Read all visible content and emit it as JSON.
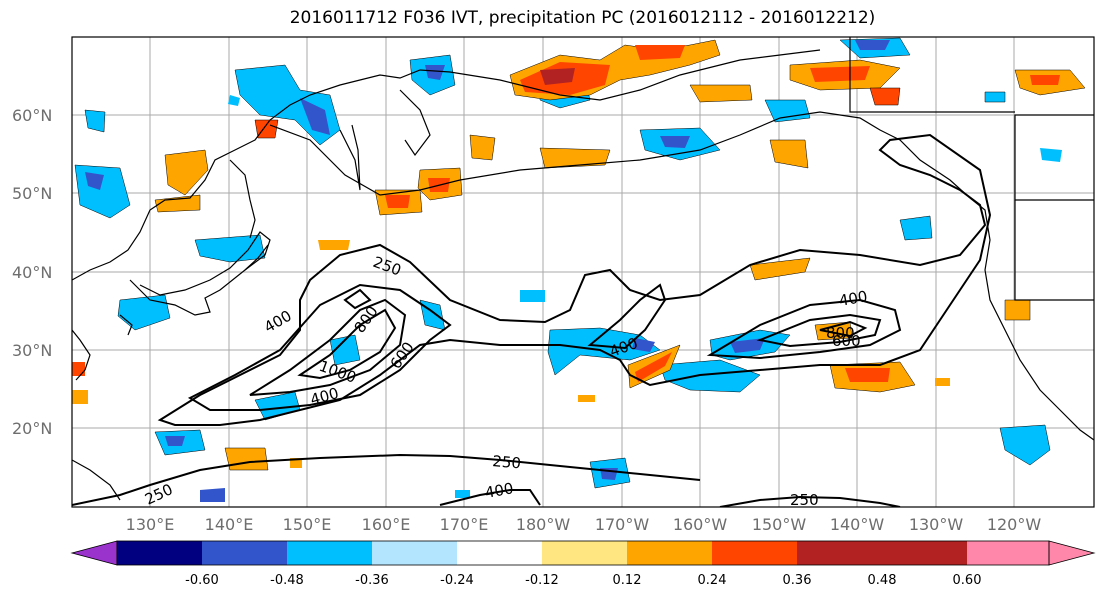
{
  "title": "2016011712 F036 IVT, precipitation PC (2016012112 - 2016012212)",
  "lat_labels": [
    "60°N",
    "50°N",
    "40°N",
    "30°N",
    "20°N"
  ],
  "lon_labels": [
    "130°E",
    "140°E",
    "150°E",
    "160°E",
    "170°E",
    "180°W",
    "170°W",
    "160°W",
    "150°W",
    "140°W",
    "130°W",
    "120°W"
  ],
  "colorbar": {
    "colors": [
      "#9933cc",
      "#000080",
      "#3355cc",
      "#00bfff",
      "#b3e5ff",
      "#ffffff",
      "#ffe680",
      "#ffa500",
      "#ff4500",
      "#b22222",
      "#ff88aa"
    ],
    "tick_labels": [
      "-0.60",
      "-0.48",
      "-0.36",
      "-0.24",
      "-0.12",
      "0.12",
      "0.24",
      "0.36",
      "0.48",
      "0.60"
    ]
  },
  "contour_labels": [
    "250",
    "400",
    "600",
    "800",
    "1000",
    "400",
    "600",
    "400",
    "400",
    "800",
    "600",
    "250",
    "400",
    "250",
    "250"
  ]
}
